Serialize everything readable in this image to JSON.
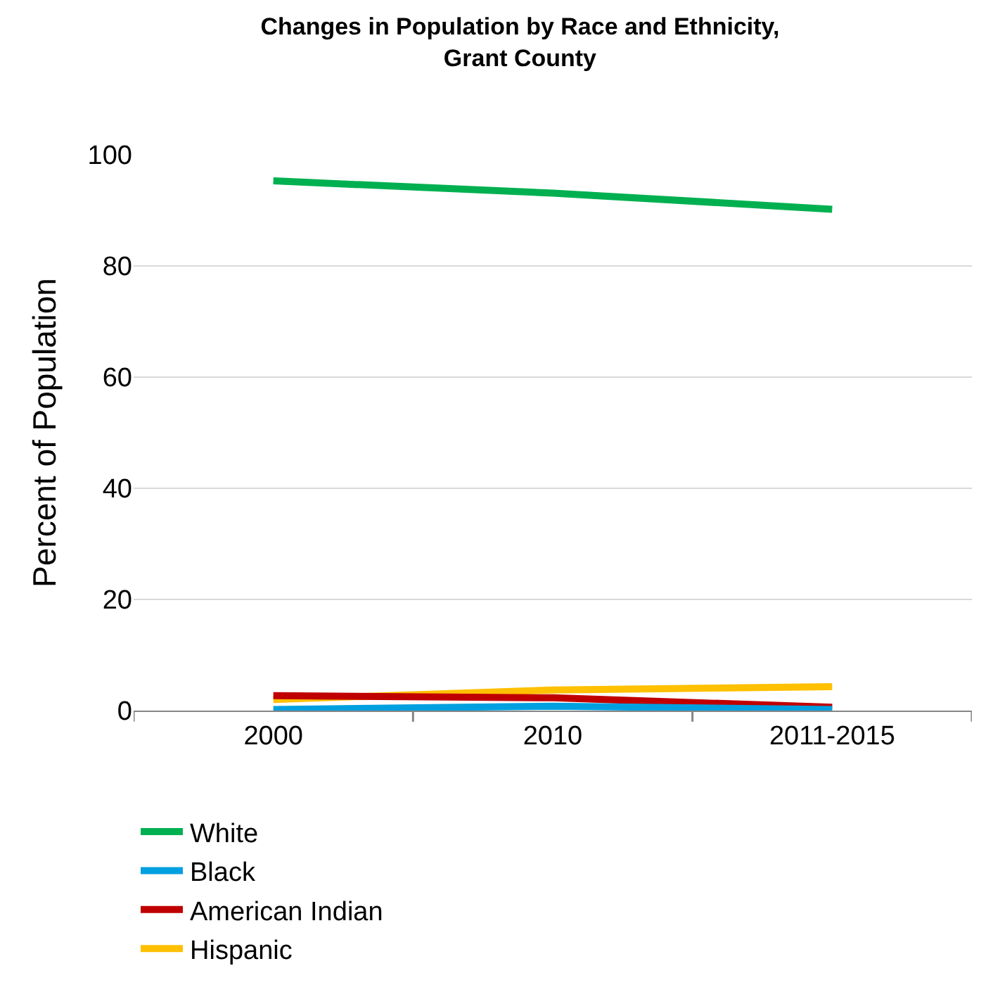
{
  "chart_data": {
    "type": "line",
    "title": "Changes in Population by Race and Ethnicity,\nGrant County",
    "ylabel": "Percent of Population",
    "categories": [
      "2000",
      "2010",
      "2011-2015"
    ],
    "ylim": [
      0,
      100
    ],
    "yticks": [
      0,
      20,
      40,
      60,
      80,
      100
    ],
    "grid": "y",
    "legend": "bottom",
    "marker": "none",
    "line_style": "solid",
    "series": [
      {
        "name": "White",
        "color": "#00b050",
        "values": [
          95.3,
          93.1,
          90.2
        ]
      },
      {
        "name": "Black",
        "color": "#00a0e0",
        "values": [
          0.2,
          0.8,
          0.2
        ]
      },
      {
        "name": "American Indian",
        "color": "#c00000",
        "values": [
          2.7,
          2.3,
          0.6
        ]
      },
      {
        "name": "Hispanic",
        "color": "#ffc000",
        "values": [
          2.0,
          3.7,
          4.3
        ]
      }
    ]
  }
}
